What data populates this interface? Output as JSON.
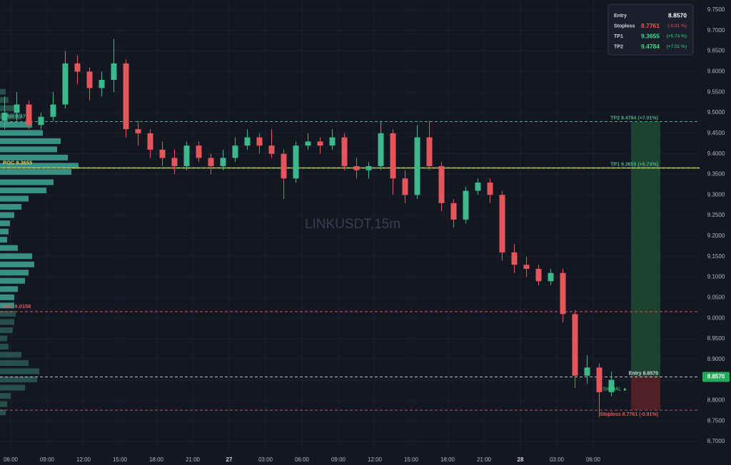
{
  "chart_data": {
    "type": "candlestick",
    "watermark": "LINKUSDT,15m",
    "up_color": "#3cb98a",
    "down_color": "#e5565a",
    "grid": true,
    "xlim": [
      5.118,
      62.765
    ],
    "xticks": [
      {
        "value": 6,
        "label": "06:00"
      },
      {
        "value": 9,
        "label": "09:00"
      },
      {
        "value": 12,
        "label": "12:00"
      },
      {
        "value": 15,
        "label": "15:00"
      },
      {
        "value": 18,
        "label": "18:00"
      },
      {
        "value": 21,
        "label": "21:00"
      },
      {
        "value": 24,
        "label": "27"
      },
      {
        "value": 27,
        "label": "03:00"
      },
      {
        "value": 30,
        "label": "06:00"
      },
      {
        "value": 33,
        "label": "09:00"
      },
      {
        "value": 36,
        "label": "12:00"
      },
      {
        "value": 39,
        "label": "15:00"
      },
      {
        "value": 42,
        "label": "18:00"
      },
      {
        "value": 45,
        "label": "21:00"
      },
      {
        "value": 48,
        "label": "28"
      },
      {
        "value": 51,
        "label": "03:00"
      },
      {
        "value": 54,
        "label": "06:00"
      }
    ],
    "ylim": [
      8.6705,
      9.7743
    ],
    "yticks": [
      {
        "value": 9.75,
        "label": "9.7500"
      },
      {
        "value": 9.7,
        "label": "9.7000"
      },
      {
        "value": 9.65,
        "label": "9.6500"
      },
      {
        "value": 9.6,
        "label": "9.6000"
      },
      {
        "value": 9.55,
        "label": "9.5500"
      },
      {
        "value": 9.5,
        "label": "9.5000"
      },
      {
        "value": 9.45,
        "label": "9.4500"
      },
      {
        "value": 9.4,
        "label": "9.4000"
      },
      {
        "value": 9.35,
        "label": "9.3500"
      },
      {
        "value": 9.3,
        "label": "9.3000"
      },
      {
        "value": 9.25,
        "label": "9.2500"
      },
      {
        "value": 9.2,
        "label": "9.2000"
      },
      {
        "value": 9.15,
        "label": "9.1500"
      },
      {
        "value": 9.1,
        "label": "9.1000"
      },
      {
        "value": 9.05,
        "label": "9.0500"
      },
      {
        "value": 9,
        "label": "9.0000"
      },
      {
        "value": 8.95,
        "label": "8.9500"
      },
      {
        "value": 8.9,
        "label": "8.9000"
      },
      {
        "value": 8.85,
        "label": "8.8500"
      },
      {
        "value": 8.8,
        "label": "8.8000"
      },
      {
        "value": 8.75,
        "label": "8.7500"
      },
      {
        "value": 8.7,
        "label": "8.7000"
      }
    ],
    "x": [
      5.5,
      6.5,
      7.5,
      8.5,
      9.5,
      10.5,
      11.5,
      12.5,
      13.5,
      14.5,
      15.5,
      16.5,
      17.5,
      18.5,
      19.5,
      20.5,
      21.5,
      22.5,
      23.5,
      24.5,
      25.5,
      26.5,
      27.5,
      28.5,
      29.5,
      30.5,
      31.5,
      32.5,
      33.5,
      34.5,
      35.5,
      36.5,
      37.5,
      38.5,
      39.5,
      40.5,
      41.5,
      42.5,
      43.5,
      44.5,
      45.5,
      46.5,
      47.5,
      48.5,
      49.5,
      50.5,
      51.5,
      52.5,
      53.5,
      54.5,
      55.5
    ],
    "ohlc": [
      [
        9.48,
        9.54,
        9.46,
        9.5
      ],
      [
        9.5,
        9.55,
        9.48,
        9.52
      ],
      [
        9.52,
        9.53,
        9.46,
        9.47
      ],
      [
        9.47,
        9.5,
        9.46,
        9.49
      ],
      [
        9.49,
        9.55,
        9.48,
        9.52
      ],
      [
        9.52,
        9.65,
        9.51,
        9.62
      ],
      [
        9.62,
        9.64,
        9.57,
        9.6
      ],
      [
        9.6,
        9.61,
        9.53,
        9.56
      ],
      [
        9.56,
        9.6,
        9.54,
        9.58
      ],
      [
        9.58,
        9.68,
        9.55,
        9.62
      ],
      [
        9.62,
        9.63,
        9.44,
        9.46
      ],
      [
        9.46,
        9.48,
        9.42,
        9.45
      ],
      [
        9.45,
        9.46,
        9.39,
        9.41
      ],
      [
        9.41,
        9.43,
        9.37,
        9.39
      ],
      [
        9.39,
        9.41,
        9.35,
        9.37
      ],
      [
        9.37,
        9.43,
        9.36,
        9.42
      ],
      [
        9.42,
        9.43,
        9.38,
        9.39
      ],
      [
        9.39,
        9.4,
        9.35,
        9.37
      ],
      [
        9.37,
        9.41,
        9.36,
        9.39
      ],
      [
        9.39,
        9.44,
        9.38,
        9.42
      ],
      [
        9.42,
        9.46,
        9.41,
        9.44
      ],
      [
        9.44,
        9.45,
        9.4,
        9.42
      ],
      [
        9.42,
        9.46,
        9.39,
        9.4
      ],
      [
        9.4,
        9.41,
        9.29,
        9.34
      ],
      [
        9.34,
        9.43,
        9.33,
        9.42
      ],
      [
        9.42,
        9.45,
        9.41,
        9.43
      ],
      [
        9.43,
        9.44,
        9.4,
        9.42
      ],
      [
        9.42,
        9.46,
        9.41,
        9.44
      ],
      [
        9.44,
        9.45,
        9.36,
        9.37
      ],
      [
        9.37,
        9.39,
        9.34,
        9.36
      ],
      [
        9.36,
        9.38,
        9.34,
        9.37
      ],
      [
        9.37,
        9.48,
        9.36,
        9.45
      ],
      [
        9.45,
        9.46,
        9.3,
        9.34
      ],
      [
        9.34,
        9.36,
        9.28,
        9.3
      ],
      [
        9.3,
        9.47,
        9.29,
        9.44
      ],
      [
        9.44,
        9.48,
        9.36,
        9.37
      ],
      [
        9.37,
        9.38,
        9.26,
        9.28
      ],
      [
        9.28,
        9.29,
        9.22,
        9.24
      ],
      [
        9.24,
        9.32,
        9.23,
        9.31
      ],
      [
        9.31,
        9.34,
        9.3,
        9.33
      ],
      [
        9.33,
        9.34,
        9.28,
        9.3
      ],
      [
        9.3,
        9.31,
        9.14,
        9.16
      ],
      [
        9.16,
        9.18,
        9.11,
        9.13
      ],
      [
        9.13,
        9.15,
        9.1,
        9.12
      ],
      [
        9.12,
        9.13,
        9.08,
        9.09
      ],
      [
        9.09,
        9.12,
        9.08,
        9.11
      ],
      [
        9.11,
        9.12,
        8.99,
        9.01
      ],
      [
        9.01,
        9.02,
        8.83,
        8.86
      ],
      [
        8.86,
        8.91,
        8.84,
        8.88
      ],
      [
        8.88,
        8.89,
        8.76,
        8.82
      ],
      [
        8.82,
        8.87,
        8.81,
        8.85
      ]
    ],
    "last_price": 8.857,
    "last_price_label": "8.8570",
    "signal_label": "SIGNAL ▲",
    "levels": [
      {
        "label": "VAH 9.4784",
        "value": 9.4784,
        "color": "#4caf7d",
        "style": "dashed"
      },
      {
        "label": "POC 9.3655",
        "value": 9.3655,
        "color": "#e8d44d",
        "style": "solid"
      },
      {
        "label": "VAL 9.0158",
        "value": 9.0158,
        "color": "#e05a5a",
        "style": "dashed"
      }
    ],
    "trade": [
      {
        "label": "TP2 9.4784 (+7.01%)",
        "value": 9.4784,
        "color": "#4caf7d"
      },
      {
        "label": "TP1 9.3655 (+5.74%)",
        "value": 9.3655,
        "color": "#4caf7d"
      },
      {
        "label": "Entry 8.8570",
        "value": 8.857,
        "color": "#d8dbe2"
      },
      {
        "label": "Stoploss 8.7761 (-0.91%)",
        "value": 8.7761,
        "color": "#e05a5a"
      }
    ],
    "volume_profile": {
      "prices": [
        9.55,
        9.53,
        9.51,
        9.49,
        9.47,
        9.45,
        9.43,
        9.41,
        9.39,
        9.37,
        9.355,
        9.33,
        9.31,
        9.29,
        9.27,
        9.25,
        9.23,
        9.21,
        9.19,
        9.17,
        9.15,
        9.13,
        9.11,
        9.09,
        9.07,
        9.05,
        9.03,
        9.01,
        8.99,
        8.97,
        8.95,
        8.93,
        8.91,
        8.89,
        8.87,
        8.85,
        8.83,
        8.81,
        8.79,
        8.77
      ],
      "volumes": [
        8,
        12,
        20,
        30,
        45,
        60,
        85,
        80,
        95,
        110,
        100,
        75,
        65,
        40,
        30,
        20,
        14,
        12,
        10,
        25,
        45,
        48,
        40,
        35,
        25,
        20,
        20,
        22,
        20,
        18,
        10,
        12,
        30,
        40,
        55,
        52,
        35,
        15,
        10,
        8
      ]
    },
    "info_panel": [
      {
        "label": "Entry",
        "price": "8.8570"
      },
      {
        "label": "Stoploss",
        "price": "8.7761",
        "change": "(-0.91 %)"
      },
      {
        "label": "TP1",
        "price": "9.3655",
        "change": "(+5.74 %)"
      },
      {
        "label": "TP2",
        "price": "9.4784",
        "change": "(+7.01 %)"
      }
    ]
  }
}
